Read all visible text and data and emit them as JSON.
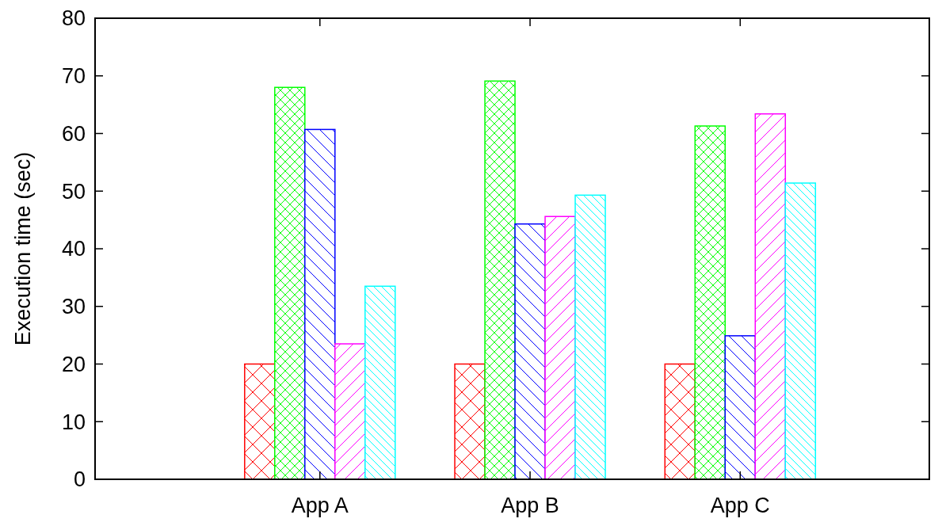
{
  "chart_data": {
    "type": "bar",
    "ylabel": "Execution time (sec)",
    "categories": [
      "App A",
      "App B",
      "App C"
    ],
    "series": [
      {
        "color": "#ff0000",
        "values": [
          20,
          20,
          20
        ]
      },
      {
        "color": "#00ff00",
        "values": [
          68,
          69.1,
          61.3
        ]
      },
      {
        "color": "#0000ff",
        "values": [
          60.7,
          44.3,
          24.9
        ]
      },
      {
        "color": "#ff00ff",
        "values": [
          23.5,
          45.6,
          63.4
        ]
      },
      {
        "color": "#00ffff",
        "values": [
          33.5,
          49.3,
          51.4
        ]
      }
    ],
    "ylim": [
      0,
      80
    ],
    "yticks": [
      0,
      10,
      20,
      30,
      40,
      50,
      60,
      70,
      80
    ],
    "grid": false
  }
}
